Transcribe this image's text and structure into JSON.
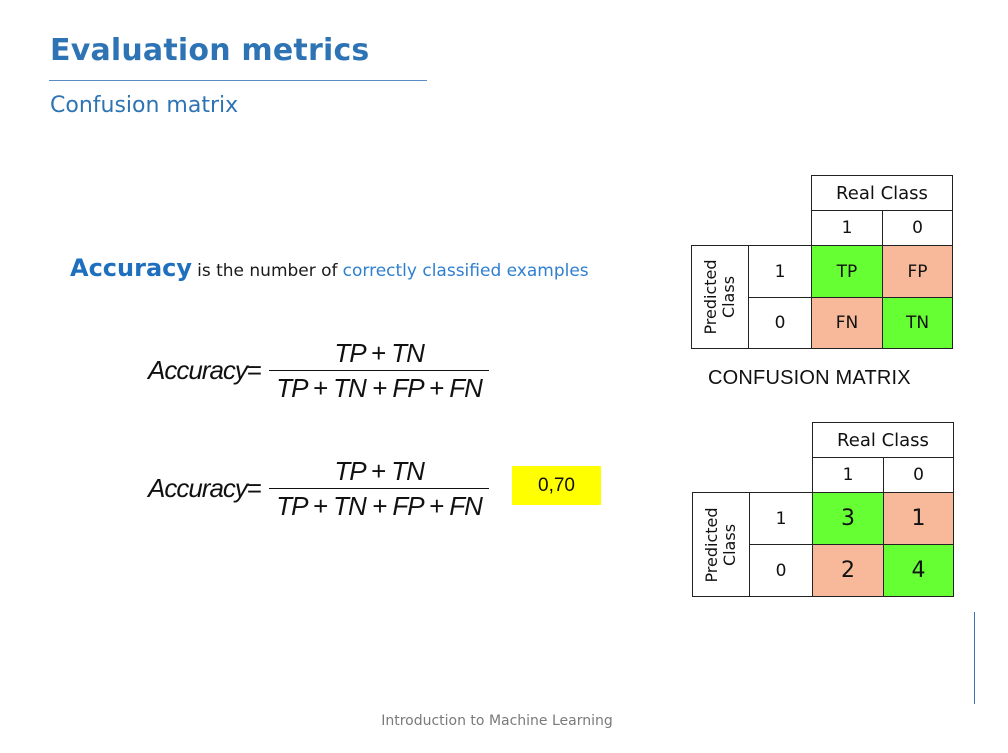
{
  "slide": {
    "title": "Evaluation metrics",
    "subtitle": "Confusion matrix",
    "footer": "Introduction to Machine Learning"
  },
  "definition": {
    "term": "Accuracy",
    "text_before": "is the number of",
    "highlight": "correctly classified examples"
  },
  "formulas": [
    {
      "lhs": "Accuracy",
      "equals": "=",
      "numerator": "TP + TN",
      "denominator": "TP + TN + FP + FN"
    },
    {
      "lhs": "Accuracy",
      "equals": "=",
      "numerator": "TP + TN",
      "denominator": "TP + TN + FP + FN"
    }
  ],
  "result": "0,70",
  "matrix_template": {
    "real_header": "Real Class",
    "predicted_header_line1": "Predicted",
    "predicted_header_line2": "Class",
    "real_labels": [
      "1",
      "0"
    ],
    "predicted_labels": [
      "1",
      "0"
    ],
    "cells": [
      [
        "TP",
        "FP"
      ],
      [
        "FN",
        "TN"
      ]
    ],
    "caption": "CONFUSION MATRIX"
  },
  "matrix_values": {
    "real_header": "Real Class",
    "predicted_header_line1": "Predicted",
    "predicted_header_line2": "Class",
    "real_labels": [
      "1",
      "0"
    ],
    "predicted_labels": [
      "1",
      "0"
    ],
    "cells": [
      [
        "3",
        "1"
      ],
      [
        "2",
        "4"
      ]
    ]
  },
  "colors": {
    "title_blue": "#2e74b5",
    "correct_green": "#66ff33",
    "error_salmon": "#f8b99a",
    "result_yellow": "#ffff00"
  }
}
